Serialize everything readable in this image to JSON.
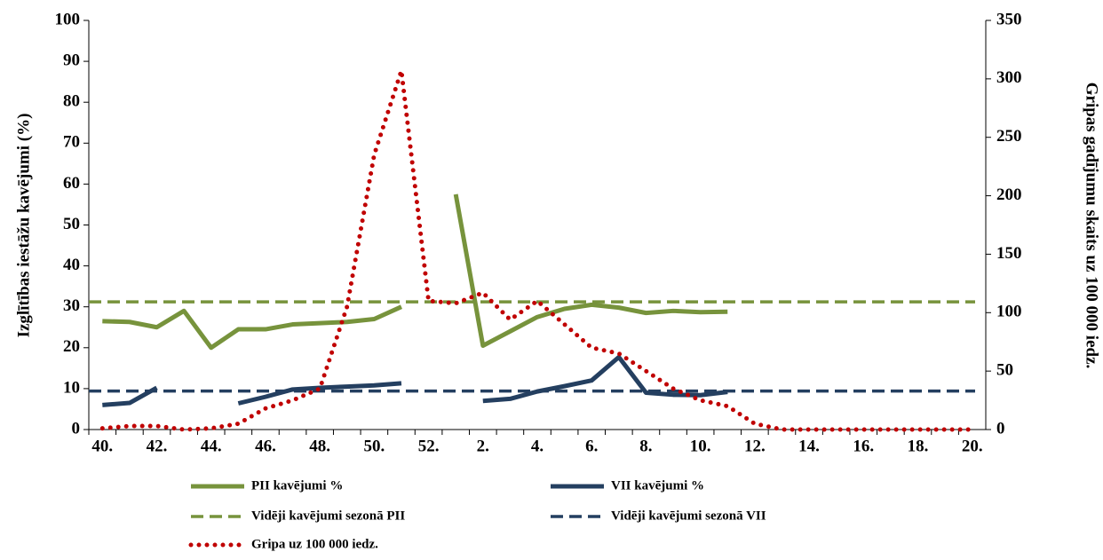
{
  "chart_data": {
    "type": "line",
    "y_label": "Izglītības iestāžu kavējumi (%)",
    "y2_label": "Gripas gadījumu skaits uz 100 000 iedz.",
    "categories": [
      "40.",
      null,
      "42.",
      null,
      "44.",
      null,
      "46.",
      null,
      "48.",
      null,
      "50.",
      null,
      "52.",
      null,
      "2.",
      null,
      "4.",
      null,
      "6.",
      null,
      "8.",
      null,
      "10.",
      null,
      "12.",
      null,
      "14.",
      null,
      "16.",
      null,
      "18.",
      null,
      "20."
    ],
    "ylim": [
      0,
      100
    ],
    "yticks": [
      0,
      10,
      20,
      30,
      40,
      50,
      60,
      70,
      80,
      90,
      100
    ],
    "y2lim": [
      0,
      350
    ],
    "y2ticks": [
      0,
      50,
      100,
      150,
      200,
      250,
      300,
      350
    ],
    "series": [
      {
        "name": "PII kavējumi %",
        "color": "#77933c",
        "style": "solid",
        "values": [
          26.5,
          26.3,
          25,
          29,
          20,
          24.5,
          24.5,
          25.7,
          26,
          26.3,
          27,
          30,
          null,
          57.5,
          20.5,
          24,
          27.5,
          29.5,
          30.5,
          29.8,
          28.5,
          29,
          28.7,
          28.8,
          null,
          null,
          null,
          null,
          null,
          null,
          null,
          null,
          null
        ]
      },
      {
        "name": "VII kavējumi %",
        "color": "#243f60",
        "style": "solid",
        "values": [
          6,
          6.5,
          10.2,
          null,
          null,
          6.4,
          8,
          9.8,
          10.2,
          10.5,
          10.8,
          11.3,
          null,
          null,
          7,
          7.5,
          9.3,
          10.6,
          12,
          17.7,
          9,
          8.5,
          8.4,
          9.2,
          null,
          null,
          null,
          null,
          null,
          null,
          null,
          null,
          null
        ]
      },
      {
        "name": "Vidēji kavējumi sezonā PII",
        "color": "#77933c",
        "style": "dashed",
        "value": 31.2
      },
      {
        "name": "Vidēji kavējumi sezonā VII",
        "color": "#243f60",
        "style": "dashed",
        "value": 9.4
      },
      {
        "name": "Gripa uz 100 000 iedz.",
        "color": "#c00000",
        "style": "dotted",
        "axis": "y2",
        "values": [
          1,
          3,
          3,
          0,
          1,
          5,
          18,
          25,
          35,
          105,
          235,
          307,
          110,
          108,
          117,
          94,
          110,
          90,
          70,
          65,
          50,
          35,
          25,
          20,
          5,
          0,
          0,
          0,
          0,
          0,
          0,
          0,
          0
        ]
      }
    ]
  }
}
